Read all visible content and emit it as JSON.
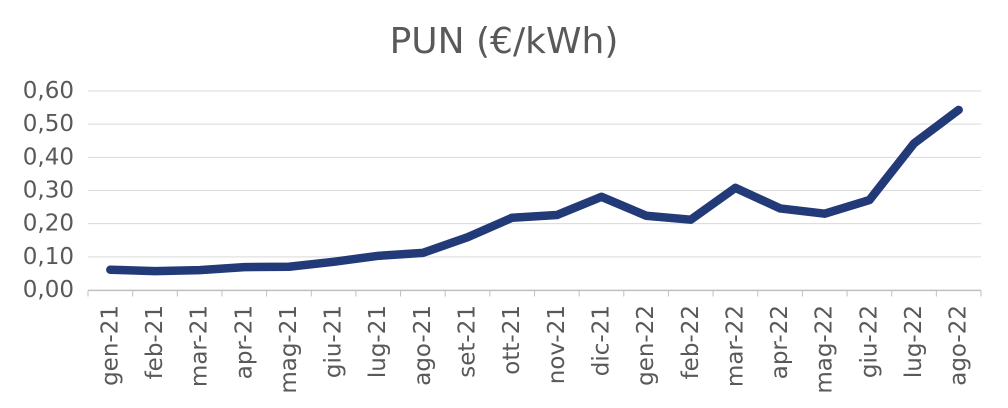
{
  "chart_data": {
    "type": "line",
    "title": "PUN (€/kWh)",
    "categories": [
      "gen-21",
      "feb-21",
      "mar-21",
      "apr-21",
      "mag-21",
      "giu-21",
      "lug-21",
      "ago-21",
      "set-21",
      "ott-21",
      "nov-21",
      "dic-21",
      "gen-22",
      "feb-22",
      "mar-22",
      "apr-22",
      "mag-22",
      "giu-22",
      "lug-22",
      "ago-22"
    ],
    "values": [
      0.061,
      0.057,
      0.06,
      0.069,
      0.07,
      0.085,
      0.103,
      0.112,
      0.159,
      0.218,
      0.226,
      0.281,
      0.224,
      0.212,
      0.308,
      0.246,
      0.23,
      0.271,
      0.442,
      0.543
    ],
    "xlabel": "",
    "ylabel": "",
    "ylim": [
      0,
      0.6
    ],
    "y_tick_step": 0.1,
    "y_tick_labels": [
      "0,00",
      "0,10",
      "0,20",
      "0,30",
      "0,40",
      "0,50",
      "0,60"
    ],
    "grid": true,
    "legend": "none"
  },
  "colors": {
    "background": "#ffffff",
    "title_text": "#595959",
    "axis_text": "#595959",
    "gridline": "#d9d9d9",
    "axis_line": "#bfbfbf",
    "tick_mark": "#bfbfbf",
    "series_line": "#233a78"
  }
}
